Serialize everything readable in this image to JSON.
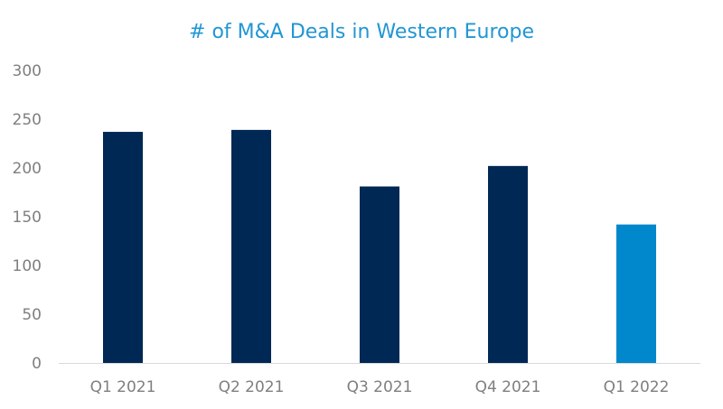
{
  "chart_data": {
    "type": "bar",
    "title": "# of M&A Deals in Western Europe",
    "categories": [
      "Q1 2021",
      "Q2 2021",
      "Q3 2021",
      "Q4 2021",
      "Q1 2022"
    ],
    "values": [
      237,
      239,
      181,
      202,
      142
    ],
    "xlabel": "",
    "ylabel": "",
    "ylim": [
      0,
      300
    ],
    "yticks": [
      0,
      50,
      100,
      150,
      200,
      250,
      300
    ],
    "grid": false,
    "legend": "none",
    "colors": {
      "title": "#2196D3",
      "bar_default": "#002855",
      "bar_highlight": "#0087CC",
      "axis_line": "#D9D9D9",
      "tick_label": "#7F7F7F"
    },
    "highlight_index": 4
  }
}
